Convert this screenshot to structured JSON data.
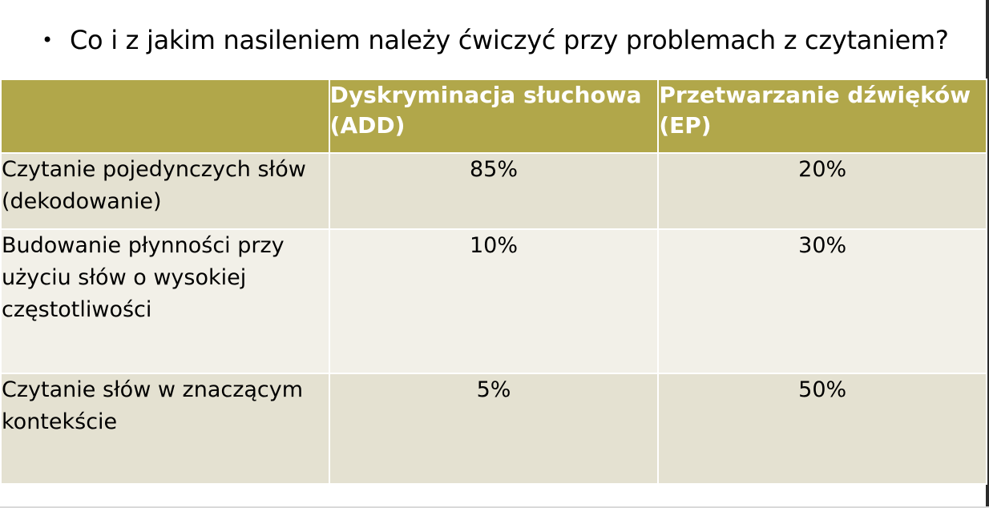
{
  "slide": {
    "bullet_text": "Co i z jakim nasileniem należy ćwiczyć przy problemach z czytaniem?"
  },
  "table": {
    "header": {
      "corner": "",
      "col_add": "Dyskryminacja słuchowa (ADD)",
      "col_ep": "Przetwarzanie dźwięków (EP)"
    },
    "rows": [
      {
        "label": "Czytanie pojedynczych słów (dekodowanie)",
        "add": "85%",
        "ep": "20%"
      },
      {
        "label": "Budowanie płynności przy użyciu słów o wysokiej częstotliwości",
        "add": "10%",
        "ep": "30%"
      },
      {
        "label": "Czytanie słów w znaczącym kontekście",
        "add": "5%",
        "ep": "50%"
      }
    ]
  },
  "colors": {
    "header_bg": "#b1a74a",
    "row_dark": "#e4e1d1",
    "row_light": "#f2f0e8"
  }
}
